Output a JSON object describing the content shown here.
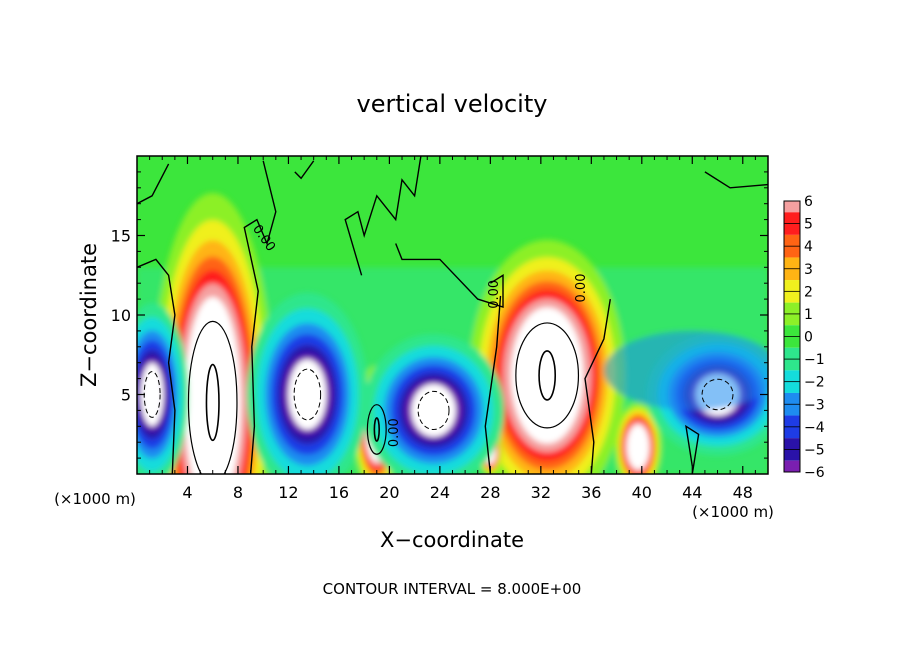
{
  "chart_data": {
    "type": "heatmap",
    "title": "vertical velocity",
    "xlabel": "X−coordinate",
    "ylabel": "Z−coordinate",
    "x_unit_label": "(×1000 m)",
    "z_unit_label": "(×1000 m)",
    "footer": "CONTOUR INTERVAL = 8.000E+00",
    "xlim": [
      0,
      50
    ],
    "ylim": [
      0,
      20
    ],
    "x_ticks": [
      {
        "value": 4,
        "label": "4"
      },
      {
        "value": 8,
        "label": "8"
      },
      {
        "value": 12,
        "label": "12"
      },
      {
        "value": 16,
        "label": "16"
      },
      {
        "value": 20,
        "label": "20"
      },
      {
        "value": 24,
        "label": "24"
      },
      {
        "value": 28,
        "label": "28"
      },
      {
        "value": 32,
        "label": "32"
      },
      {
        "value": 36,
        "label": "36"
      },
      {
        "value": 40,
        "label": "40"
      },
      {
        "value": 44,
        "label": "44"
      },
      {
        "value": 48,
        "label": "48"
      }
    ],
    "y_ticks": [
      {
        "value": 5,
        "label": "5"
      },
      {
        "value": 10,
        "label": "10"
      },
      {
        "value": 15,
        "label": "15"
      }
    ],
    "colorbar": {
      "levels": [
        {
          "value": -6,
          "label": "−6",
          "color": "#7a1fb0"
        },
        {
          "value": -5,
          "label": "−5",
          "color": "#2a12a8"
        },
        {
          "value": -4,
          "label": "−4",
          "color": "#1e3ce6"
        },
        {
          "value": -3,
          "label": "−3",
          "color": "#1e8cf0"
        },
        {
          "value": -2,
          "label": "−2",
          "color": "#14dcdc"
        },
        {
          "value": -1,
          "label": "−1",
          "color": "#2ee68c"
        },
        {
          "value": 0,
          "label": "0",
          "color": "#3ce63c"
        },
        {
          "value": 1,
          "label": "1",
          "color": "#8cf028"
        },
        {
          "value": 2,
          "label": "2",
          "color": "#f0f01e"
        },
        {
          "value": 3,
          "label": "3",
          "color": "#ffb414"
        },
        {
          "value": 4,
          "label": "4",
          "color": "#ff6414"
        },
        {
          "value": 5,
          "label": "5",
          "color": "#ff1e1e"
        },
        {
          "value": 6,
          "label": "6",
          "color": "#f5a0a0"
        }
      ]
    },
    "features": [
      {
        "kind": "updraft",
        "x": 6,
        "z": 4.5,
        "rx": 3.1,
        "rz": 8.5
      },
      {
        "kind": "updraft",
        "x": 19,
        "z": 2.8,
        "rx": 1.2,
        "rz": 2.6
      },
      {
        "kind": "updraft",
        "x": 32.5,
        "z": 6.2,
        "rx": 4.0,
        "rz": 5.5
      },
      {
        "kind": "updraft",
        "x": 39.7,
        "z": 1.7,
        "rx": 1.2,
        "rz": 1.8
      },
      {
        "kind": "updraft",
        "x": 28,
        "z": 1.4,
        "rx": 0.6,
        "rz": 1.0
      },
      {
        "kind": "downdraft",
        "x": 1.2,
        "z": 5.0,
        "rx": 1.8,
        "rz": 3.6
      },
      {
        "kind": "downdraft",
        "x": 13.5,
        "z": 5.0,
        "rx": 3.0,
        "rz": 4.0
      },
      {
        "kind": "downdraft",
        "x": 23.5,
        "z": 4.0,
        "rx": 3.5,
        "rz": 3.0
      },
      {
        "kind": "downdraft",
        "x": 46,
        "z": 5.0,
        "rx": 3.5,
        "rz": 2.4
      }
    ],
    "contour_labels": [
      {
        "text": "0.00",
        "x": 9.8,
        "z": 14.7,
        "rotate": 55
      },
      {
        "text": "0.00",
        "x": 20.7,
        "z": 2.6,
        "rotate": -90
      },
      {
        "text": "0.00",
        "x": 28.6,
        "z": 11.3,
        "rotate": -90
      },
      {
        "text": "0.00",
        "x": 35.5,
        "z": 11.7,
        "rotate": -90
      }
    ]
  }
}
